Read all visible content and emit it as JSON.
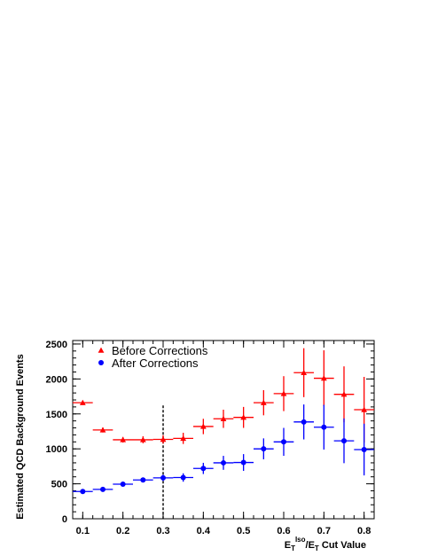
{
  "chart_data": {
    "type": "scatter",
    "title": "",
    "xlabel": {
      "parts": [
        {
          "text": "E",
          "style": "base"
        },
        {
          "text": "T",
          "style": "sub"
        },
        {
          "text": "Iso",
          "style": "sup"
        },
        {
          "text": "/E",
          "style": "base"
        },
        {
          "text": "T",
          "style": "sub"
        },
        {
          "text": " Cut Value",
          "style": "base"
        }
      ]
    },
    "ylabel": "Estimated QCD Background Events",
    "xlim": [
      0.075,
      0.825
    ],
    "ylim": [
      0,
      2550
    ],
    "xticks": [
      0.1,
      0.2,
      0.3,
      0.4,
      0.5,
      0.6,
      0.7,
      0.8
    ],
    "xtick_labels": [
      "0.1",
      "0.2",
      "0.3",
      "0.4",
      "0.5",
      "0.6",
      "0.7",
      "0.8"
    ],
    "xminor_step": 0.025,
    "yticks": [
      0,
      500,
      1000,
      1500,
      2000,
      2500
    ],
    "ytick_labels": [
      "0",
      "500",
      "1000",
      "1500",
      "2000",
      "2500"
    ],
    "yminor_step": 100,
    "grid": false,
    "legend_position": "top-left",
    "cut_line": {
      "x": 0.3,
      "y_top": 1620
    },
    "series": [
      {
        "name": "Before Corrections",
        "color": "#ff0000",
        "marker": "triangle",
        "x": [
          0.1,
          0.15,
          0.2,
          0.25,
          0.3,
          0.35,
          0.4,
          0.45,
          0.5,
          0.55,
          0.6,
          0.65,
          0.7,
          0.75,
          0.8
        ],
        "y": [
          1660,
          1270,
          1130,
          1130,
          1135,
          1150,
          1320,
          1430,
          1450,
          1660,
          1790,
          2090,
          2010,
          1780,
          1560
        ],
        "yerr": [
          30,
          35,
          40,
          50,
          60,
          80,
          110,
          130,
          150,
          180,
          250,
          350,
          400,
          400,
          470
        ],
        "xerr": 0.025
      },
      {
        "name": "After Corrections",
        "color": "#0000ff",
        "marker": "circle",
        "x": [
          0.1,
          0.15,
          0.2,
          0.25,
          0.3,
          0.35,
          0.4,
          0.45,
          0.5,
          0.55,
          0.6,
          0.65,
          0.7,
          0.75,
          0.8
        ],
        "y": [
          390,
          420,
          495,
          555,
          585,
          590,
          720,
          800,
          805,
          1000,
          1100,
          1385,
          1310,
          1115,
          990
        ],
        "yerr": [
          20,
          25,
          30,
          35,
          45,
          60,
          80,
          100,
          120,
          150,
          200,
          250,
          320,
          320,
          370
        ],
        "xerr": 0.025
      }
    ]
  }
}
